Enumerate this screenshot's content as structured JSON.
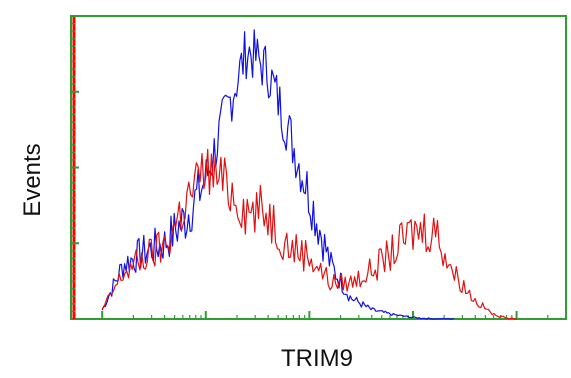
{
  "chart_data": {
    "type": "line",
    "title": "",
    "xlabel": "TRIM9",
    "ylabel": "Events",
    "x_scale": "log",
    "xlim": [
      0.5,
      30000
    ],
    "ylim": [
      0,
      100
    ],
    "grid": false,
    "legend": "none",
    "colors": {
      "frame": "#2e9e2e",
      "tick": "#2e9e2e",
      "red_baseline": "#ff0000",
      "series_blue": "#1010e0",
      "series_red": "#e01010"
    },
    "series": [
      {
        "color": "#1010e0",
        "x": [
          1.0,
          1.6,
          2.5,
          4.0,
          6.3,
          10,
          16,
          25,
          40,
          63,
          100,
          160,
          250,
          400,
          630,
          1000,
          1600,
          2500
        ],
        "y": [
          3,
          18,
          22,
          25,
          33,
          46,
          69,
          89,
          82,
          62,
          41,
          18,
          7,
          3,
          1.5,
          0.5,
          0,
          0
        ]
      },
      {
        "color": "#e01010",
        "x": [
          1.0,
          1.6,
          2.5,
          4.0,
          6.3,
          10,
          16,
          25,
          40,
          63,
          100,
          160,
          250,
          400,
          630,
          1000,
          1600,
          2500,
          4000,
          6300,
          10000
        ],
        "y": [
          3,
          15,
          20,
          24,
          38,
          50,
          44,
          36,
          35,
          24,
          21,
          12,
          12,
          16,
          22,
          29,
          30,
          15,
          6,
          1,
          0
        ]
      }
    ]
  }
}
